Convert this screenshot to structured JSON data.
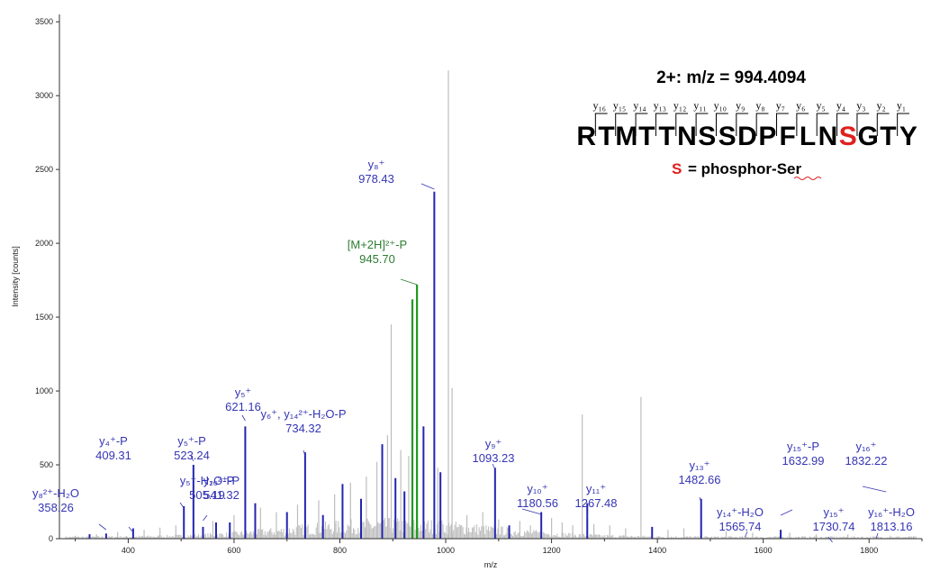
{
  "chart_data": {
    "type": "bar",
    "xlabel": "m/z",
    "ylabel": "Intensity [counts]",
    "xlim": [
      270,
      1900
    ],
    "ylim": [
      0,
      3550
    ],
    "x_ticks": [
      400,
      600,
      800,
      1000,
      1200,
      1400,
      1600,
      1800
    ],
    "y_ticks": [
      0,
      500,
      1000,
      1500,
      2000,
      2500,
      3000,
      3500
    ],
    "colors": {
      "matched": "#2424b0",
      "precursor": "#1f9a1f",
      "unmatched": "#bdbdbd"
    },
    "series": [
      {
        "name": "matched",
        "x": [
          327,
          358.26,
          409.31,
          505.19,
          523.24,
          541.32,
          566,
          592,
          621.16,
          640,
          700,
          734.32,
          768,
          805,
          840,
          880,
          905,
          922,
          958,
          978.43,
          990,
          1093.23,
          1120,
          1180.56,
          1267.48,
          1390,
          1482.66,
          1632.99
        ],
        "values": [
          30,
          35,
          70,
          220,
          500,
          80,
          110,
          110,
          760,
          240,
          180,
          585,
          160,
          370,
          270,
          640,
          410,
          320,
          760,
          2350,
          450,
          480,
          90,
          180,
          240,
          80,
          270,
          60
        ]
      },
      {
        "name": "precursor",
        "x": [
          937,
          945.7
        ],
        "values": [
          1620,
          1720
        ]
      },
      {
        "name": "unmatched",
        "x": [
          300,
          340,
          380,
          430,
          460,
          490,
          560,
          600,
          650,
          680,
          720,
          760,
          790,
          820,
          850,
          870,
          890,
          897,
          915,
          930,
          985,
          1005,
          1012,
          1040,
          1070,
          1100,
          1140,
          1160,
          1200,
          1220,
          1240,
          1258,
          1280,
          1310,
          1340,
          1369,
          1420,
          1450,
          1530,
          1580,
          1650,
          1700,
          1760,
          1840,
          1880
        ],
        "values": [
          20,
          30,
          45,
          60,
          75,
          90,
          120,
          160,
          210,
          180,
          230,
          260,
          300,
          380,
          420,
          520,
          700,
          1450,
          600,
          560,
          480,
          3170,
          1020,
          160,
          180,
          130,
          120,
          90,
          140,
          110,
          90,
          840,
          100,
          90,
          70,
          960,
          60,
          70,
          50,
          40,
          40,
          30,
          30,
          20,
          15
        ]
      }
    ],
    "annotations": [
      {
        "lines": [
          "y₈²⁺-H₂O",
          "358.26"
        ],
        "x": 358.26,
        "color": "blue"
      },
      {
        "lines": [
          "y₄⁺-P",
          "409.31"
        ],
        "x": 409.31,
        "color": "blue"
      },
      {
        "lines": [
          "y₅⁺-H₂O-P",
          "505.19"
        ],
        "x": 505.19,
        "color": "blue"
      },
      {
        "lines": [
          "y₅⁺-P",
          "523.24"
        ],
        "x": 523.24,
        "color": "blue"
      },
      {
        "lines": [
          "y₁₀²⁺-P",
          "541.32"
        ],
        "x": 541.32,
        "color": "blue"
      },
      {
        "lines": [
          "y₅⁺",
          "621.16"
        ],
        "x": 621.16,
        "color": "blue"
      },
      {
        "lines": [
          "y₆⁺, y₁₄²⁺-H₂O-P",
          "734.32"
        ],
        "x": 734.32,
        "color": "blue"
      },
      {
        "lines": [
          "[M+2H]²⁺-P",
          "945.70"
        ],
        "x": 945.7,
        "color": "green"
      },
      {
        "lines": [
          "y₈⁺",
          "978.43"
        ],
        "x": 978.43,
        "color": "blue"
      },
      {
        "lines": [
          "y₉⁺",
          "1093.23"
        ],
        "x": 1093.23,
        "color": "blue"
      },
      {
        "lines": [
          "y₁₀⁺",
          "1180.56"
        ],
        "x": 1180.56,
        "color": "blue"
      },
      {
        "lines": [
          "y₁₁⁺",
          "1267.48"
        ],
        "x": 1267.48,
        "color": "blue"
      },
      {
        "lines": [
          "y₁₃⁺",
          "1482.66"
        ],
        "x": 1482.66,
        "color": "blue"
      },
      {
        "lines": [
          "y₁₄⁺-H₂O",
          "1565.74"
        ],
        "x": 1565.74,
        "color": "blue"
      },
      {
        "lines": [
          "y₁₅⁺-P",
          "1632.99"
        ],
        "x": 1632.99,
        "color": "blue"
      },
      {
        "lines": [
          "y₁₅⁺",
          "1730.74"
        ],
        "x": 1730.74,
        "color": "blue"
      },
      {
        "lines": [
          "y₁₆⁺",
          "1832.22"
        ],
        "x": 1832.22,
        "color": "blue"
      },
      {
        "lines": [
          "y₁₆⁺-H₂O",
          "1813.16"
        ],
        "x": 1813.16,
        "color": "blue"
      }
    ],
    "inset": {
      "title": "2+: m/z = 994.4094",
      "sequence": [
        "R",
        "T",
        "M",
        "T",
        "T",
        "N",
        "S",
        "S",
        "D",
        "P",
        "F",
        "L",
        "N",
        "S",
        "G",
        "T",
        "Y"
      ],
      "phospho_index": 13,
      "ion_labels": [
        "y₁₆",
        "y₁₅",
        "y₁₄",
        "y₁₃",
        "y₁₂",
        "y₁₁",
        "y₁₀",
        "y₉",
        "y₈",
        "y₇",
        "y₆",
        "y₅",
        "y₄",
        "y₃",
        "y₂",
        "y₁"
      ],
      "legend_symbol": "S",
      "legend_text": "= phosphor-Ser"
    }
  }
}
